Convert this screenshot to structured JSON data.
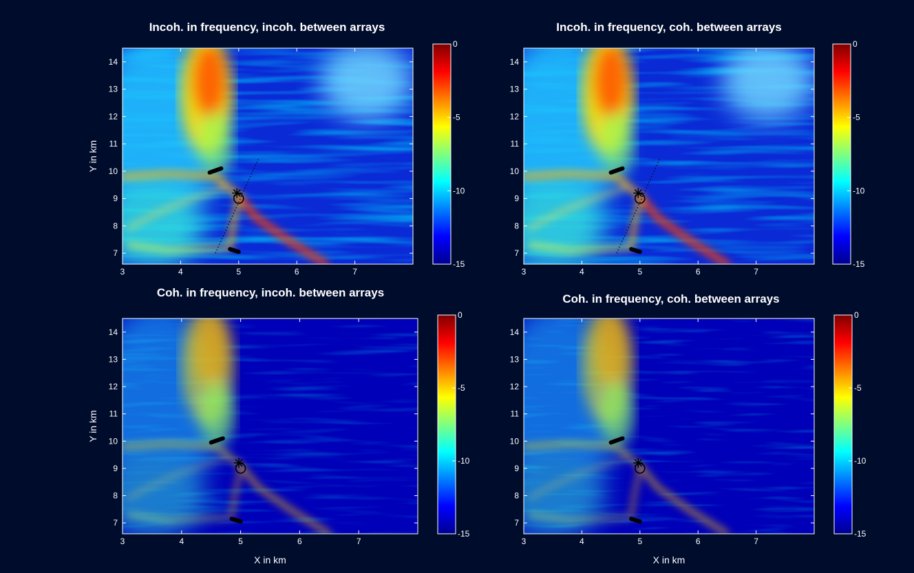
{
  "chart_data": [
    {
      "type": "heatmap",
      "title": "Incoh. in frequency, incoh. between arrays",
      "xlabel": "",
      "ylabel": "Y in km",
      "xlim": [
        3,
        8
      ],
      "ylim": [
        6.6,
        14.5
      ],
      "xticks": [
        "3",
        "4",
        "5",
        "6",
        "7"
      ],
      "yticks": [
        "7",
        "8",
        "9",
        "10",
        "11",
        "12",
        "13",
        "14"
      ],
      "colorbar": {
        "range": [
          -15,
          0
        ],
        "ticks": [
          "0",
          "-5",
          "-10",
          "-15"
        ]
      },
      "source_marker": {
        "x": 5.0,
        "y": 9.0
      },
      "estimate_marker": {
        "x": 4.97,
        "y": 9.2
      },
      "arrays": [
        [
          [
            4.5,
            9.95
          ],
          [
            4.7,
            10.1
          ]
        ],
        [
          [
            4.85,
            7.15
          ],
          [
            5.0,
            7.05
          ]
        ]
      ]
    },
    {
      "type": "heatmap",
      "title": "Incoh. in frequency, coh. between arrays",
      "xlabel": "",
      "ylabel": "",
      "xlim": [
        3,
        8
      ],
      "ylim": [
        6.6,
        14.5
      ],
      "xticks": [
        "3",
        "4",
        "5",
        "6",
        "7"
      ],
      "yticks": [
        "7",
        "8",
        "9",
        "10",
        "11",
        "12",
        "13",
        "14"
      ],
      "colorbar": {
        "range": [
          -15,
          0
        ],
        "ticks": [
          "0",
          "-5",
          "-10",
          "-15"
        ]
      },
      "source_marker": {
        "x": 5.0,
        "y": 9.0
      },
      "estimate_marker": {
        "x": 4.97,
        "y": 9.2
      },
      "arrays": [
        [
          [
            4.5,
            9.95
          ],
          [
            4.7,
            10.1
          ]
        ],
        [
          [
            4.85,
            7.15
          ],
          [
            5.0,
            7.05
          ]
        ]
      ]
    },
    {
      "type": "heatmap",
      "title": "Coh. in frequency, incoh. between arrays",
      "xlabel": "X in km",
      "ylabel": "Y in km",
      "xlim": [
        3,
        8
      ],
      "ylim": [
        6.6,
        14.5
      ],
      "xticks": [
        "3",
        "4",
        "5",
        "6",
        "7"
      ],
      "yticks": [
        "7",
        "8",
        "9",
        "10",
        "11",
        "12",
        "13",
        "14"
      ],
      "colorbar": {
        "range": [
          -15,
          0
        ],
        "ticks": [
          "0",
          "-5",
          "-10",
          "-15"
        ]
      },
      "source_marker": {
        "x": 5.0,
        "y": 9.0
      },
      "estimate_marker": {
        "x": 4.97,
        "y": 9.2
      },
      "arrays": [
        [
          [
            4.5,
            9.95
          ],
          [
            4.7,
            10.1
          ]
        ],
        [
          [
            4.85,
            7.15
          ],
          [
            5.0,
            7.05
          ]
        ]
      ]
    },
    {
      "type": "heatmap",
      "title": "Coh. in frequency, coh. between arrays",
      "xlabel": "X in km",
      "ylabel": "",
      "xlim": [
        3,
        8
      ],
      "ylim": [
        6.6,
        14.5
      ],
      "xticks": [
        "3",
        "4",
        "5",
        "6",
        "7"
      ],
      "yticks": [
        "7",
        "8",
        "9",
        "10",
        "11",
        "12",
        "13",
        "14"
      ],
      "colorbar": {
        "range": [
          -15,
          0
        ],
        "ticks": [
          "0",
          "-5",
          "-10",
          "-15"
        ]
      },
      "source_marker": {
        "x": 5.0,
        "y": 9.0
      },
      "estimate_marker": {
        "x": 4.97,
        "y": 9.2
      },
      "arrays": [
        [
          [
            4.5,
            9.95
          ],
          [
            4.7,
            10.1
          ]
        ],
        [
          [
            4.85,
            7.15
          ],
          [
            5.0,
            7.05
          ]
        ]
      ]
    }
  ]
}
